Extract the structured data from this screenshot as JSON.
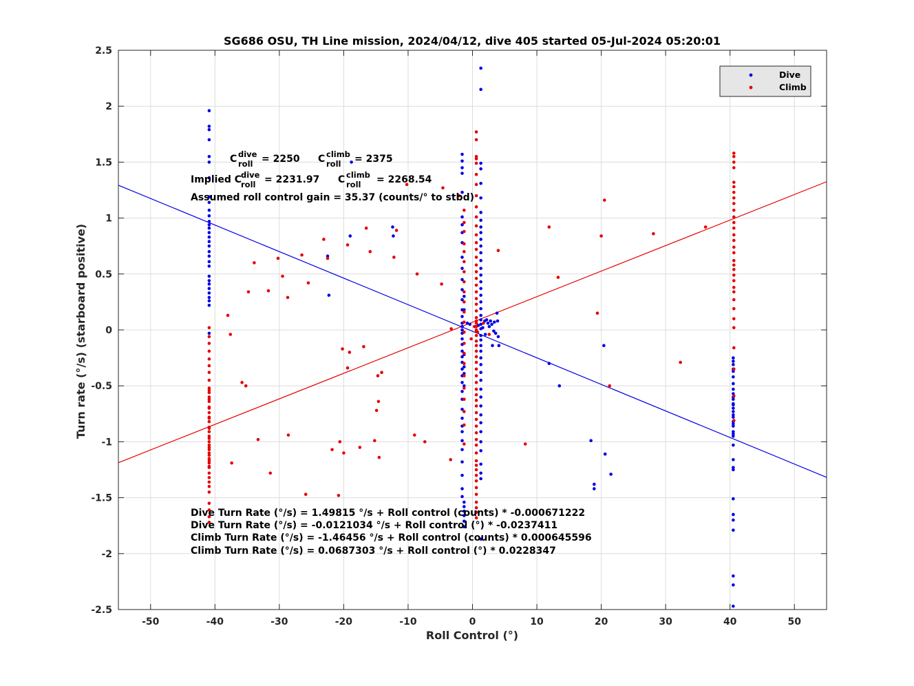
{
  "chart_data": {
    "type": "scatter",
    "title": "SG686 OSU, TH Line mission, 2024/04/12, dive 405 started 05-Jul-2024 05:20:01",
    "xlabel": "Roll Control (°)",
    "ylabel": "Turn rate (°/s) (starboard positive)",
    "xlim": [
      -55,
      55
    ],
    "ylim": [
      -2.5,
      2.5
    ],
    "xticks": [
      -50,
      -40,
      -30,
      -20,
      -10,
      0,
      10,
      20,
      30,
      40,
      50
    ],
    "yticks": [
      -2.5,
      -2,
      -1.5,
      -1,
      -0.5,
      0,
      0.5,
      1,
      1.5,
      2,
      2.5
    ],
    "grid": true,
    "legend": {
      "position": "top-right",
      "entries": [
        "Dive",
        "Climb"
      ]
    },
    "colors": {
      "dive": "#0000e6",
      "climb": "#e60000"
    },
    "series": [
      {
        "name": "Dive",
        "color": "#0000e6",
        "x": [
          -40.9,
          -40.9,
          -40.9,
          -40.9,
          -40.9,
          -40.9,
          -40.9,
          -40.9,
          -40.9,
          -40.9,
          -40.9,
          -40.9,
          -40.9,
          -40.9,
          -40.9,
          -40.9,
          -40.9,
          -40.9,
          -40.9,
          -40.9,
          -40.9,
          -40.9,
          -40.9,
          -40.9,
          -40.9,
          -40.9,
          -40.9,
          -40.9,
          -40.9,
          -40.9,
          -40.9,
          -1.6,
          -1.6,
          -1.6,
          -1.6,
          -1.6,
          -1.6,
          -1.6,
          -1.6,
          -1.6,
          -1.6,
          -1.6,
          -1.6,
          -1.6,
          -1.6,
          -1.6,
          -1.6,
          -1.6,
          -1.6,
          -1.6,
          -1.6,
          -1.6,
          -1.6,
          -1.6,
          -1.6,
          -1.6,
          -1.6,
          -1.6,
          -1.6,
          -1.6,
          -1.6,
          -1.6,
          -1.6,
          -1.6,
          -1.6,
          -1.6,
          -1.6,
          -1.6,
          -1.6,
          -1.6,
          -1.6,
          -1.3,
          -1.3,
          -1.3,
          -1.3,
          -1.3,
          -1.3,
          -1.3,
          -1.3,
          -1.3,
          -1.3,
          -1.3,
          -1.3,
          1.3,
          1.3,
          1.3,
          1.3,
          1.3,
          1.3,
          1.3,
          1.3,
          1.3,
          1.3,
          1.3,
          1.3,
          1.3,
          1.3,
          1.3,
          1.3,
          1.3,
          1.3,
          1.3,
          1.3,
          1.3,
          1.3,
          1.3,
          1.3,
          1.3,
          1.3,
          1.3,
          1.3,
          1.3,
          1.3,
          1.3,
          1.3,
          1.3,
          1.3,
          1.3,
          1.3,
          1.3,
          1.3,
          1.3,
          1.3,
          1.3,
          1.3,
          1.3,
          1.3,
          1.3,
          -0.8,
          -0.4,
          0.4,
          0.9,
          1.6,
          1.9,
          2.2,
          2.4,
          2.6,
          2.8,
          3.0,
          3.3,
          3.4,
          3.6,
          3.8,
          3.9,
          4.0,
          4.1,
          2.0,
          3.1,
          -22.5,
          -22.3,
          -19.0,
          -18.8,
          -12.4,
          -12.3,
          11.9,
          13.5,
          18.4,
          18.9,
          18.9,
          20.4,
          20.6,
          21.5,
          40.5,
          40.5,
          40.5,
          40.5,
          40.5,
          40.5,
          40.5,
          40.5,
          40.5,
          40.5,
          40.5,
          40.5,
          40.5,
          40.5,
          40.5,
          40.5,
          40.5,
          40.5,
          40.5,
          40.5,
          40.5,
          40.5,
          40.5,
          40.5,
          40.5,
          40.5,
          40.5,
          40.5,
          40.5,
          40.5,
          40.5,
          40.5,
          40.5,
          40.5
        ],
        "y": [
          1.96,
          1.82,
          1.79,
          1.7,
          1.55,
          1.5,
          1.36,
          1.19,
          1.14,
          1.07,
          1.02,
          0.97,
          0.94,
          0.91,
          0.87,
          0.83,
          0.79,
          0.75,
          0.7,
          0.66,
          0.61,
          0.57,
          0.48,
          0.44,
          0.41,
          0.37,
          0.33,
          0.29,
          0.26,
          0.22,
          -0.03,
          1.57,
          1.51,
          1.45,
          1.4,
          1.23,
          1.01,
          0.94,
          0.87,
          0.78,
          0.65,
          0.55,
          0.45,
          0.36,
          0.27,
          0.18,
          0.12,
          0.06,
          0.03,
          0.0,
          -0.03,
          -0.08,
          -0.13,
          -0.19,
          -0.24,
          -0.29,
          -0.35,
          -0.41,
          -0.47,
          -0.55,
          -0.62,
          -0.71,
          -0.79,
          -0.86,
          -0.91,
          -0.99,
          -1.07,
          -1.18,
          -1.3,
          -1.42,
          -1.49,
          -1.54,
          -1.58,
          -1.62,
          -1.66,
          -1.71,
          -1.76,
          -0.22,
          -0.33,
          -0.39,
          -0.5,
          0.3,
          0.18,
          2.34,
          2.15,
          1.49,
          1.44,
          1.31,
          1.18,
          1.05,
          0.98,
          0.92,
          0.87,
          0.81,
          0.75,
          0.69,
          0.62,
          0.55,
          0.49,
          0.43,
          0.37,
          0.31,
          0.25,
          0.19,
          0.13,
          0.09,
          0.05,
          0.01,
          -0.05,
          -0.09,
          -0.14,
          -0.19,
          -0.25,
          -0.31,
          -0.38,
          -0.45,
          -0.53,
          -0.6,
          -0.68,
          -0.76,
          -0.83,
          -0.91,
          -1.0,
          -1.08,
          -1.2,
          -1.28,
          -1.33,
          -1.87,
          0.06,
          0.05,
          0.03,
          0.04,
          0.02,
          0.08,
          0.09,
          0.06,
          0.03,
          0.08,
          0.05,
          -0.01,
          0.07,
          -0.03,
          0.15,
          0.08,
          -0.06,
          -0.14,
          -0.04,
          -0.14,
          0.66,
          0.31,
          0.84,
          1.5,
          0.92,
          0.84,
          -0.3,
          -0.5,
          -0.99,
          -1.38,
          -1.42,
          -0.14,
          -1.11,
          -1.29,
          -0.25,
          -0.28,
          -0.35,
          -0.42,
          -0.48,
          -0.53,
          -0.57,
          -0.62,
          -0.66,
          -0.7,
          -0.73,
          -0.78,
          -0.82,
          -0.86,
          -0.91,
          -0.93,
          -1.03,
          -1.16,
          -1.23,
          -1.25,
          -1.51,
          -1.65,
          -1.7,
          -1.79,
          -2.2,
          -2.28,
          -2.47,
          -0.31,
          -0.37,
          -0.6,
          -0.67,
          -0.76,
          -0.84,
          -0.95
        ]
      },
      {
        "name": "Climb",
        "color": "#e60000",
        "x": [
          -40.9,
          -40.9,
          -40.9,
          -40.9,
          -40.9,
          -40.9,
          -40.9,
          -40.9,
          -40.9,
          -40.9,
          -40.9,
          -40.9,
          -40.9,
          -40.9,
          -40.9,
          -40.9,
          -40.9,
          -40.9,
          -40.9,
          -40.9,
          -40.9,
          -40.9,
          -40.9,
          -40.9,
          -40.9,
          -40.9,
          -40.9,
          -40.9,
          -40.9,
          -40.9,
          -40.9,
          -40.9,
          -40.9,
          -40.9,
          -40.9,
          -40.9,
          -40.9,
          -40.9,
          -40.9,
          -40.9,
          -40.9,
          -40.9,
          -40.9,
          -40.9,
          -40.9,
          0.6,
          0.6,
          0.6,
          0.6,
          0.6,
          0.6,
          0.6,
          0.6,
          0.6,
          0.6,
          0.6,
          0.6,
          0.6,
          0.6,
          0.6,
          0.6,
          0.6,
          0.6,
          0.6,
          0.6,
          0.6,
          0.6,
          0.6,
          0.6,
          0.6,
          0.6,
          0.6,
          0.6,
          0.6,
          0.6,
          0.6,
          0.6,
          0.6,
          0.6,
          0.6,
          0.6,
          0.6,
          0.6,
          0.6,
          0.6,
          0.6,
          0.6,
          0.6,
          0.6,
          0.6,
          0.6,
          0.6,
          0.6,
          0.6,
          0.6,
          0.6,
          0.6,
          0.6,
          0.6,
          0.6,
          0.6,
          0.6,
          0.6,
          0.6,
          0.6,
          -1.3,
          -1.3,
          -1.3,
          -1.3,
          -1.3,
          -1.3,
          -1.3,
          -1.3,
          -1.3,
          -1.3,
          -1.3,
          -1.3,
          -1.3,
          -1.3,
          -1.3,
          -1.3,
          -1.3,
          -1.3,
          -1.3,
          -1.3,
          -1.3,
          -1.3,
          40.6,
          40.6,
          40.6,
          40.6,
          40.6,
          40.6,
          40.6,
          40.6,
          40.6,
          40.6,
          40.6,
          40.6,
          40.6,
          40.6,
          40.6,
          40.6,
          40.6,
          40.6,
          40.6,
          40.6,
          40.6,
          40.6,
          40.6,
          40.6,
          40.6,
          40.6,
          40.6,
          40.6,
          40.6,
          40.6,
          40.6,
          40.6,
          -38.0,
          -37.6,
          -37.4,
          -35.8,
          -35.2,
          -34.8,
          -33.9,
          -33.3,
          -31.7,
          -31.4,
          -30.2,
          -29.5,
          -28.7,
          -28.6,
          -26.5,
          -25.9,
          -25.5,
          -23.1,
          -22.5,
          -21.8,
          -20.8,
          -20.6,
          -20.2,
          -20.0,
          -19.4,
          -19.4,
          -19.1,
          -17.5,
          -16.9,
          -16.5,
          -15.9,
          -15.2,
          -14.9,
          -14.7,
          -14.6,
          -14.5,
          -14.1,
          -12.2,
          -11.8,
          -10.2,
          -9.0,
          -8.6,
          -7.4,
          -4.8,
          -4.6,
          -3.4,
          -3.3,
          -2.1,
          4.0,
          8.2,
          11.9,
          13.3,
          19.4,
          20.0,
          20.5,
          21.3,
          28.1,
          32.3,
          36.2,
          -0.2,
          0.3,
          0.8,
          1.7,
          2.6
        ],
        "y": [
          0.02,
          -0.06,
          -0.12,
          -0.19,
          -0.26,
          -0.32,
          -0.38,
          -0.45,
          -0.52,
          -0.56,
          -0.6,
          -0.64,
          -0.69,
          -0.74,
          -0.78,
          -0.82,
          -0.87,
          -0.91,
          -0.95,
          -1.0,
          -1.03,
          -1.07,
          -1.1,
          -1.15,
          -1.19,
          -1.23,
          -1.28,
          -1.32,
          -1.36,
          -1.4,
          -1.45,
          -1.55,
          -1.61,
          -1.67,
          -1.72,
          -0.54,
          -0.62,
          -0.7,
          -0.79,
          -0.88,
          -0.97,
          -1.05,
          -1.12,
          -1.17,
          -1.22,
          1.77,
          1.7,
          1.55,
          1.53,
          1.49,
          1.39,
          1.3,
          1.2,
          1.1,
          1.01,
          0.93,
          0.85,
          0.78,
          0.72,
          0.65,
          0.58,
          0.52,
          0.46,
          0.4,
          0.34,
          0.28,
          0.23,
          0.17,
          0.11,
          0.06,
          0.0,
          -0.05,
          -0.1,
          -0.14,
          -0.19,
          -0.24,
          -0.29,
          -0.35,
          -0.41,
          -0.47,
          -0.53,
          -0.58,
          -0.63,
          -0.68,
          -0.74,
          -0.8,
          -0.86,
          -0.92,
          -0.98,
          -1.03,
          -1.1,
          -1.17,
          -1.21,
          -1.25,
          -1.3,
          -1.35,
          -1.41,
          -1.47,
          -1.54,
          -1.59,
          -1.63,
          -1.68,
          -0.01,
          0.03,
          0.08,
          1.07,
          0.96,
          0.88,
          0.77,
          0.7,
          0.61,
          0.52,
          0.43,
          0.34,
          0.25,
          0.16,
          0.07,
          -0.02,
          -0.12,
          -0.21,
          -0.3,
          -0.41,
          -0.52,
          -0.62,
          -0.73,
          -0.85,
          -1.02,
          1.58,
          1.55,
          1.5,
          1.45,
          1.32,
          1.28,
          1.23,
          1.18,
          1.13,
          1.07,
          1.01,
          0.96,
          0.91,
          0.85,
          0.8,
          0.74,
          0.69,
          0.62,
          0.58,
          0.54,
          0.49,
          0.44,
          0.38,
          0.34,
          0.27,
          0.19,
          0.1,
          0.02,
          -0.16,
          -0.35,
          -0.59,
          -0.81,
          0.13,
          -0.04,
          -1.19,
          -0.47,
          -0.5,
          0.34,
          0.6,
          -0.98,
          0.35,
          -1.28,
          0.64,
          0.48,
          0.29,
          -0.94,
          0.67,
          -1.47,
          0.42,
          0.81,
          0.64,
          -1.07,
          -1.48,
          -1.0,
          -0.17,
          -1.1,
          -0.34,
          0.76,
          -0.2,
          -1.05,
          -0.15,
          0.91,
          0.7,
          -0.99,
          -0.72,
          -0.41,
          -0.64,
          -1.14,
          -0.38,
          0.65,
          0.89,
          1.3,
          -0.94,
          0.5,
          -1.0,
          0.41,
          1.27,
          -1.16,
          0.01,
          1.2,
          0.71,
          -1.02,
          0.92,
          0.47,
          0.15,
          0.84,
          1.16,
          -0.5,
          0.86,
          -0.29,
          0.92,
          -0.08,
          0.03,
          -0.02,
          0.06,
          -0.04
        ]
      }
    ],
    "fits": [
      {
        "series": "Dive",
        "color": "#0000e6",
        "intercept": -0.0121034,
        "slope": -0.0237411
      },
      {
        "series": "Climb",
        "color": "#e60000",
        "intercept": 0.0687303,
        "slope": 0.0228347
      }
    ],
    "annotations": {
      "c_roll_line": {
        "c": "C",
        "dive_sup": "dive",
        "roll_sub": "roll",
        "dive_val": "= 2250",
        "climb_sup": "climb",
        "climb_val": "= 2375"
      },
      "implied_line": {
        "prefix": "Implied C",
        "dive_sup": "dive",
        "roll_sub": "roll",
        "dive_val": "= 2231.97",
        "c": "C",
        "climb_sup": "climb",
        "climb_val": "= 2268.54"
      },
      "gain_line": "Assumed roll control gain = 35.37 (counts/° to stbd)",
      "equations": [
        "Dive Turn Rate (°/s) = 1.49815 °/s + Roll control (counts) * -0.000671222",
        "Dive Turn Rate (°/s) = -0.0121034 °/s + Roll control (°) * -0.0237411",
        "Climb Turn Rate (°/s) = -1.46456 °/s + Roll control (counts) * 0.000645596",
        "Climb Turn Rate (°/s) = 0.0687303 °/s + Roll control (°) * 0.0228347"
      ]
    }
  }
}
